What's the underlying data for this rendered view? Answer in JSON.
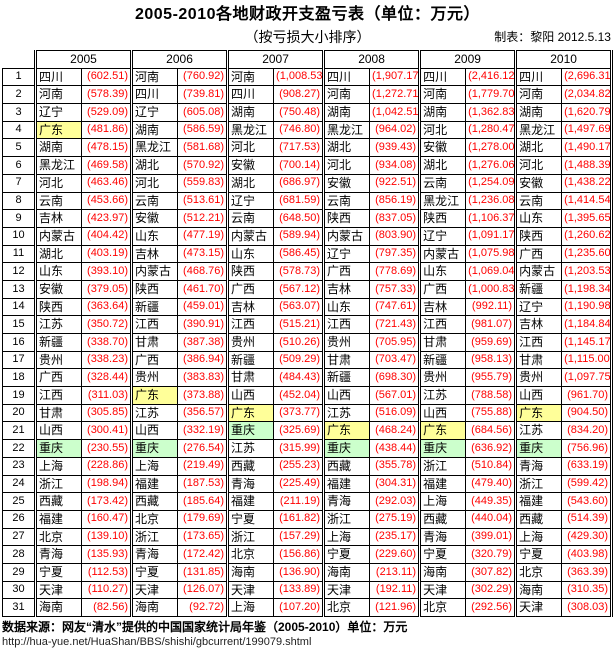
{
  "header": {
    "title": "2005-2010各地财政开支盈亏表（单位：万元）",
    "subtitle": "（按亏损大小排序）",
    "credit": "制表：黎阳 2012.5.13"
  },
  "colors": {
    "value_red": "#ff0000",
    "border": "#000000",
    "highlight_guangdong": "#ffff99",
    "highlight_chongqing": "#ccffcc"
  },
  "table": {
    "years": [
      "2005",
      "2006",
      "2007",
      "2008",
      "2009",
      "2010"
    ],
    "highlight_provinces": {
      "广东": "#ffff99",
      "重庆": "#ccffcc"
    },
    "rows": [
      {
        "rank": "1",
        "cols": [
          [
            "四川",
            "(602.51)"
          ],
          [
            "河南",
            "(760.92)"
          ],
          [
            "河南",
            "(1,008.53)"
          ],
          [
            "四川",
            "(1,907.17)"
          ],
          [
            "四川",
            "(2,416.12)"
          ],
          [
            "四川",
            "(2,696.31)"
          ]
        ]
      },
      {
        "rank": "2",
        "cols": [
          [
            "河南",
            "(578.39)"
          ],
          [
            "四川",
            "(739.81)"
          ],
          [
            "四川",
            "(908.27)"
          ],
          [
            "河南",
            "(1,272.71)"
          ],
          [
            "河南",
            "(1,779.70)"
          ],
          [
            "河南",
            "(2,034.82)"
          ]
        ]
      },
      {
        "rank": "3",
        "cols": [
          [
            "辽宁",
            "(529.09)"
          ],
          [
            "辽宁",
            "(605.08)"
          ],
          [
            "湖南",
            "(750.48)"
          ],
          [
            "湖南",
            "(1,042.51)"
          ],
          [
            "湖南",
            "(1,362.83)"
          ],
          [
            "湖南",
            "(1,620.79)"
          ]
        ]
      },
      {
        "rank": "4",
        "cols": [
          [
            "广东",
            "(481.86)"
          ],
          [
            "湖南",
            "(586.59)"
          ],
          [
            "黑龙江",
            "(746.80)"
          ],
          [
            "黑龙江",
            "(964.02)"
          ],
          [
            "河北",
            "(1,280.47)"
          ],
          [
            "黑龙江",
            "(1,497.69)"
          ]
        ]
      },
      {
        "rank": "5",
        "cols": [
          [
            "湖南",
            "(478.15)"
          ],
          [
            "黑龙江",
            "(581.68)"
          ],
          [
            "河北",
            "(717.53)"
          ],
          [
            "湖北",
            "(939.43)"
          ],
          [
            "安徽",
            "(1,278.00)"
          ],
          [
            "湖北",
            "(1,490.17)"
          ]
        ]
      },
      {
        "rank": "6",
        "cols": [
          [
            "黑龙江",
            "(469.58)"
          ],
          [
            "湖北",
            "(570.92)"
          ],
          [
            "安徽",
            "(700.14)"
          ],
          [
            "河北",
            "(934.08)"
          ],
          [
            "湖北",
            "(1,276.06)"
          ],
          [
            "河北",
            "(1,488.39)"
          ]
        ]
      },
      {
        "rank": "7",
        "cols": [
          [
            "河北",
            "(463.46)"
          ],
          [
            "河北",
            "(559.83)"
          ],
          [
            "湖北",
            "(686.97)"
          ],
          [
            "安徽",
            "(922.51)"
          ],
          [
            "云南",
            "(1,254.09)"
          ],
          [
            "安徽",
            "(1,438.22)"
          ]
        ]
      },
      {
        "rank": "8",
        "cols": [
          [
            "云南",
            "(453.66)"
          ],
          [
            "云南",
            "(513.61)"
          ],
          [
            "辽宁",
            "(681.59)"
          ],
          [
            "云南",
            "(856.19)"
          ],
          [
            "黑龙江",
            "(1,236.08)"
          ],
          [
            "云南",
            "(1,414.54)"
          ]
        ]
      },
      {
        "rank": "9",
        "cols": [
          [
            "吉林",
            "(423.97)"
          ],
          [
            "安徽",
            "(512.21)"
          ],
          [
            "云南",
            "(648.50)"
          ],
          [
            "陕西",
            "(837.05)"
          ],
          [
            "陕西",
            "(1,106.37)"
          ],
          [
            "山东",
            "(1,395.65)"
          ]
        ]
      },
      {
        "rank": "10",
        "cols": [
          [
            "内蒙古",
            "(404.42)"
          ],
          [
            "山东",
            "(477.19)"
          ],
          [
            "内蒙古",
            "(589.94)"
          ],
          [
            "内蒙古",
            "(803.90)"
          ],
          [
            "辽宁",
            "(1,091.17)"
          ],
          [
            "陕西",
            "(1,260.62)"
          ]
        ]
      },
      {
        "rank": "11",
        "cols": [
          [
            "湖北",
            "(403.19)"
          ],
          [
            "吉林",
            "(473.15)"
          ],
          [
            "山东",
            "(586.45)"
          ],
          [
            "辽宁",
            "(797.35)"
          ],
          [
            "内蒙古",
            "(1,075.98)"
          ],
          [
            "广西",
            "(1,235.60)"
          ]
        ]
      },
      {
        "rank": "12",
        "cols": [
          [
            "山东",
            "(393.10)"
          ],
          [
            "内蒙古",
            "(468.76)"
          ],
          [
            "陕西",
            "(578.73)"
          ],
          [
            "广西",
            "(778.69)"
          ],
          [
            "山东",
            "(1,069.04)"
          ],
          [
            "内蒙古",
            "(1,203.53)"
          ]
        ]
      },
      {
        "rank": "13",
        "cols": [
          [
            "安徽",
            "(379.05)"
          ],
          [
            "陕西",
            "(461.70)"
          ],
          [
            "广西",
            "(567.12)"
          ],
          [
            "吉林",
            "(757.33)"
          ],
          [
            "广西",
            "(1,000.83)"
          ],
          [
            "新疆",
            "(1,198.34)"
          ]
        ]
      },
      {
        "rank": "14",
        "cols": [
          [
            "陕西",
            "(363.64)"
          ],
          [
            "新疆",
            "(459.01)"
          ],
          [
            "吉林",
            "(563.07)"
          ],
          [
            "山东",
            "(747.61)"
          ],
          [
            "吉林",
            "(992.11)"
          ],
          [
            "辽宁",
            "(1,190.98)"
          ]
        ]
      },
      {
        "rank": "15",
        "cols": [
          [
            "江苏",
            "(350.72)"
          ],
          [
            "江西",
            "(390.91)"
          ],
          [
            "江西",
            "(515.21)"
          ],
          [
            "江西",
            "(721.43)"
          ],
          [
            "江西",
            "(981.07)"
          ],
          [
            "吉林",
            "(1,184.84)"
          ]
        ]
      },
      {
        "rank": "16",
        "cols": [
          [
            "新疆",
            "(338.70)"
          ],
          [
            "甘肃",
            "(387.38)"
          ],
          [
            "贵州",
            "(510.26)"
          ],
          [
            "贵州",
            "(705.95)"
          ],
          [
            "甘肃",
            "(959.69)"
          ],
          [
            "江西",
            "(1,145.17)"
          ]
        ]
      },
      {
        "rank": "17",
        "cols": [
          [
            "贵州",
            "(338.23)"
          ],
          [
            "广西",
            "(386.94)"
          ],
          [
            "新疆",
            "(509.29)"
          ],
          [
            "甘肃",
            "(703.47)"
          ],
          [
            "新疆",
            "(958.13)"
          ],
          [
            "甘肃",
            "(1,115.00)"
          ]
        ]
      },
      {
        "rank": "18",
        "cols": [
          [
            "广西",
            "(328.44)"
          ],
          [
            "贵州",
            "(383.83)"
          ],
          [
            "甘肃",
            "(484.43)"
          ],
          [
            "新疆",
            "(698.30)"
          ],
          [
            "贵州",
            "(955.79)"
          ],
          [
            "贵州",
            "(1,097.75)"
          ]
        ]
      },
      {
        "rank": "19",
        "cols": [
          [
            "江西",
            "(311.03)"
          ],
          [
            "广东",
            "(373.88)"
          ],
          [
            "山西",
            "(452.04)"
          ],
          [
            "山西",
            "(567.01)"
          ],
          [
            "江苏",
            "(788.58)"
          ],
          [
            "山西",
            "(961.70)"
          ]
        ]
      },
      {
        "rank": "20",
        "cols": [
          [
            "甘肃",
            "(305.85)"
          ],
          [
            "江苏",
            "(356.57)"
          ],
          [
            "广东",
            "(373.77)"
          ],
          [
            "江苏",
            "(516.09)"
          ],
          [
            "山西",
            "(755.88)"
          ],
          [
            "广东",
            "(904.50)"
          ]
        ]
      },
      {
        "rank": "21",
        "cols": [
          [
            "山西",
            "(300.41)"
          ],
          [
            "山西",
            "(332.19)"
          ],
          [
            "重庆",
            "(325.69)"
          ],
          [
            "广东",
            "(468.24)"
          ],
          [
            "广东",
            "(684.56)"
          ],
          [
            "江苏",
            "(834.20)"
          ]
        ]
      },
      {
        "rank": "22",
        "cols": [
          [
            "重庆",
            "(230.55)"
          ],
          [
            "重庆",
            "(276.54)"
          ],
          [
            "江苏",
            "(315.99)"
          ],
          [
            "重庆",
            "(438.44)"
          ],
          [
            "重庆",
            "(636.92)"
          ],
          [
            "重庆",
            "(756.96)"
          ]
        ]
      },
      {
        "rank": "23",
        "cols": [
          [
            "上海",
            "(228.86)"
          ],
          [
            "上海",
            "(219.49)"
          ],
          [
            "西藏",
            "(255.23)"
          ],
          [
            "西藏",
            "(355.78)"
          ],
          [
            "浙江",
            "(510.84)"
          ],
          [
            "青海",
            "(633.19)"
          ]
        ]
      },
      {
        "rank": "24",
        "cols": [
          [
            "浙江",
            "(198.94)"
          ],
          [
            "福建",
            "(187.53)"
          ],
          [
            "青海",
            "(225.49)"
          ],
          [
            "福建",
            "(304.31)"
          ],
          [
            "福建",
            "(479.40)"
          ],
          [
            "浙江",
            "(599.42)"
          ]
        ]
      },
      {
        "rank": "25",
        "cols": [
          [
            "西藏",
            "(173.42)"
          ],
          [
            "西藏",
            "(185.64)"
          ],
          [
            "福建",
            "(211.19)"
          ],
          [
            "青海",
            "(292.03)"
          ],
          [
            "上海",
            "(449.35)"
          ],
          [
            "福建",
            "(543.60)"
          ]
        ]
      },
      {
        "rank": "26",
        "cols": [
          [
            "福建",
            "(160.47)"
          ],
          [
            "北京",
            "(179.69)"
          ],
          [
            "宁夏",
            "(161.82)"
          ],
          [
            "浙江",
            "(275.19)"
          ],
          [
            "西藏",
            "(440.04)"
          ],
          [
            "西藏",
            "(514.39)"
          ]
        ]
      },
      {
        "rank": "27",
        "cols": [
          [
            "北京",
            "(139.10)"
          ],
          [
            "浙江",
            "(173.65)"
          ],
          [
            "浙江",
            "(157.29)"
          ],
          [
            "上海",
            "(235.17)"
          ],
          [
            "青海",
            "(399.01)"
          ],
          [
            "上海",
            "(429.30)"
          ]
        ]
      },
      {
        "rank": "28",
        "cols": [
          [
            "青海",
            "(135.93)"
          ],
          [
            "青海",
            "(172.42)"
          ],
          [
            "北京",
            "(156.86)"
          ],
          [
            "宁夏",
            "(229.60)"
          ],
          [
            "宁夏",
            "(320.79)"
          ],
          [
            "宁夏",
            "(403.98)"
          ]
        ]
      },
      {
        "rank": "29",
        "cols": [
          [
            "宁夏",
            "(112.53)"
          ],
          [
            "宁夏",
            "(131.85)"
          ],
          [
            "海南",
            "(136.90)"
          ],
          [
            "海南",
            "(213.11)"
          ],
          [
            "海南",
            "(307.82)"
          ],
          [
            "北京",
            "(363.39)"
          ]
        ]
      },
      {
        "rank": "30",
        "cols": [
          [
            "天津",
            "(110.27)"
          ],
          [
            "天津",
            "(126.07)"
          ],
          [
            "天津",
            "(133.89)"
          ],
          [
            "天津",
            "(192.11)"
          ],
          [
            "天津",
            "(302.29)"
          ],
          [
            "海南",
            "(310.35)"
          ]
        ]
      },
      {
        "rank": "31",
        "cols": [
          [
            "海南",
            "(82.56)"
          ],
          [
            "海南",
            "(92.72)"
          ],
          [
            "上海",
            "(107.20)"
          ],
          [
            "北京",
            "(121.96)"
          ],
          [
            "北京",
            "(292.56)"
          ],
          [
            "天津",
            "(308.03)"
          ]
        ]
      }
    ]
  },
  "footer": {
    "source": "数据来源：网友“清水”提供的中国国家统计局年鉴（2005-2010）单位：万元",
    "url": "http://hua-yue.net/HuaShan/BBS/shishi/gbcurrent/199079.shtml"
  }
}
